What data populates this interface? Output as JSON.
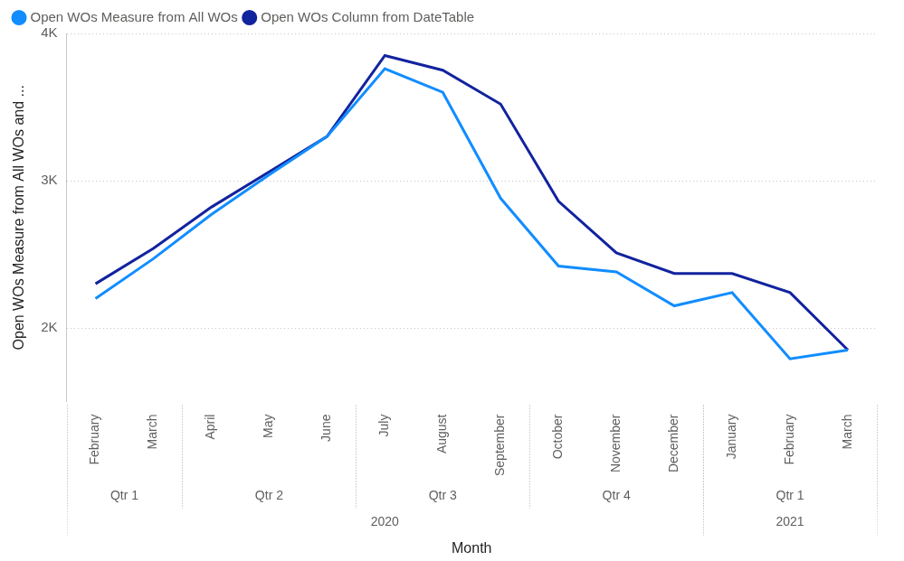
{
  "chart_data": {
    "type": "line",
    "x_label": "Month",
    "y_label": "Open WOs Measure from All WOs and ...",
    "categories": [
      "February",
      "March",
      "April",
      "May",
      "June",
      "July",
      "August",
      "September",
      "October",
      "November",
      "December",
      "January",
      "February",
      "March"
    ],
    "quarters": [
      "Qtr 1",
      "Qtr 1",
      "Qtr 2",
      "Qtr 2",
      "Qtr 2",
      "Qtr 3",
      "Qtr 3",
      "Qtr 3",
      "Qtr 4",
      "Qtr 4",
      "Qtr 4",
      "Qtr 1",
      "Qtr 1",
      "Qtr 1"
    ],
    "years": [
      "2020",
      "2020",
      "2020",
      "2020",
      "2020",
      "2020",
      "2020",
      "2020",
      "2020",
      "2020",
      "2020",
      "2021",
      "2021",
      "2021"
    ],
    "series": [
      {
        "name": "Open WOs Measure from All WOs",
        "color": "#118dff",
        "values": [
          2200,
          2470,
          2770,
          3040,
          3300,
          3760,
          3600,
          2880,
          2420,
          2380,
          2150,
          2240,
          1790,
          1850
        ]
      },
      {
        "name": "Open WOs Column from DateTable",
        "color": "#12239e",
        "values": [
          2300,
          2540,
          2820,
          3060,
          3300,
          3850,
          3750,
          3520,
          2860,
          2510,
          2370,
          2370,
          2240,
          1850
        ]
      }
    ],
    "ylim": [
      1500,
      4000
    ],
    "yticks": [
      {
        "value": 2000,
        "label": "2K"
      },
      {
        "value": 3000,
        "label": "3K"
      },
      {
        "value": 4000,
        "label": "4K"
      }
    ],
    "grid": true,
    "legend": "top-left"
  }
}
